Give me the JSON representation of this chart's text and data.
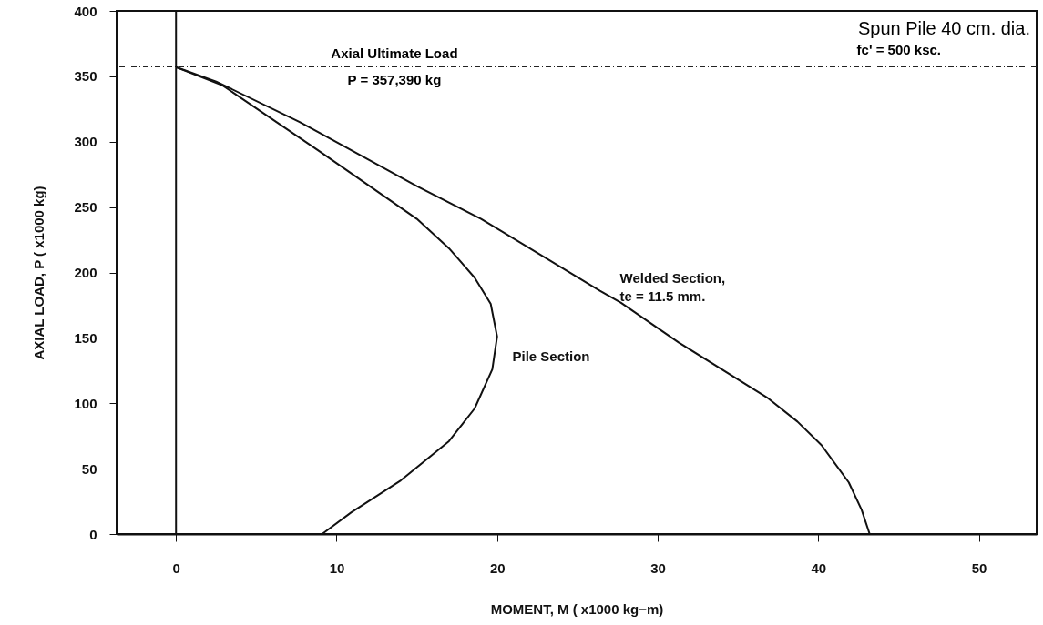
{
  "chart_data": {
    "type": "line",
    "xlabel": "MOMENT, M ( x1000 kg−m)",
    "ylabel": "AXIAL LOAD, P ( x1000 kg)",
    "xlim": [
      -3.7,
      53.6
    ],
    "ylim": [
      0,
      400
    ],
    "xticks": [
      0,
      10,
      20,
      30,
      40,
      50
    ],
    "yticks": [
      0,
      50,
      100,
      150,
      200,
      250,
      300,
      350,
      400
    ],
    "grid": false,
    "marker": "none",
    "line_style": "solid",
    "series": [
      {
        "name": "Welded Section,\nte = 11.5 mm.",
        "color": "#111111",
        "x": [
          0,
          2.5,
          7.7,
          8.9,
          15.0,
          19.0,
          26.4,
          27.7,
          31.3,
          36.8,
          38.7,
          40.2,
          41.9,
          42.7,
          43.2
        ],
        "values": [
          357,
          346,
          315,
          307,
          266,
          241,
          186,
          177,
          146.5,
          104.5,
          86,
          68,
          39.5,
          18.5,
          0
        ]
      },
      {
        "name": "Pile Section",
        "color": "#111111",
        "x": [
          0,
          2.9,
          8.9,
          15.0,
          17.0,
          18.6,
          19.6,
          20.0,
          19.7,
          18.6,
          17.0,
          14.0,
          10.9,
          9.1
        ],
        "values": [
          357,
          343,
          293,
          241,
          218.5,
          196,
          176,
          151,
          126,
          96,
          71,
          41,
          16.4,
          0
        ]
      }
    ],
    "ref_lines": [
      {
        "axis": "y",
        "value": 357.39,
        "line_style": "dashdot",
        "color": "#222222"
      },
      {
        "axis": "x",
        "value": 0,
        "line_style": "solid",
        "color": "#111111"
      }
    ],
    "annotations": [
      {
        "text": "Axial Ultimate Load",
        "x": 13.6,
        "y": 357.39
      },
      {
        "text": "P = 357,390 kg",
        "x": 13.6,
        "y": 357.39
      },
      "Spun Pile 40 cm. dia.",
      "fc' = 500 ksc."
    ]
  }
}
